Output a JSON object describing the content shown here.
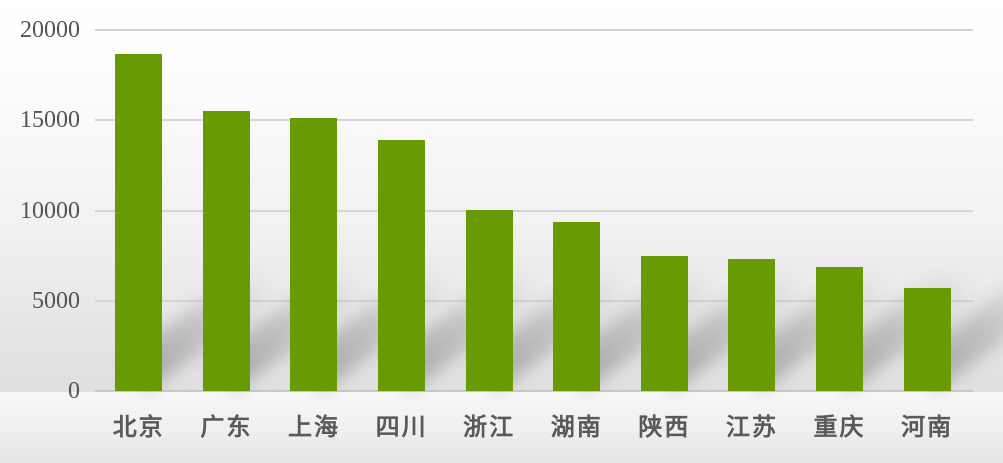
{
  "chart_data": {
    "type": "bar",
    "title": "",
    "xlabel": "",
    "ylabel": "",
    "categories": [
      "北京",
      "广东",
      "上海",
      "四川",
      "浙江",
      "湖南",
      "陕西",
      "江苏",
      "重庆",
      "河南"
    ],
    "values": [
      18700,
      15500,
      15100,
      13900,
      10050,
      9350,
      7500,
      7300,
      6900,
      5700
    ],
    "ylim": [
      0,
      20000
    ],
    "yticks": [
      0,
      5000,
      10000,
      15000,
      20000
    ],
    "grid": true,
    "legend": false,
    "bar_color": "#689A04",
    "gridline_color": "#d5d5d5",
    "axis_label_color": "#555555",
    "category_label_color": "#595959"
  }
}
